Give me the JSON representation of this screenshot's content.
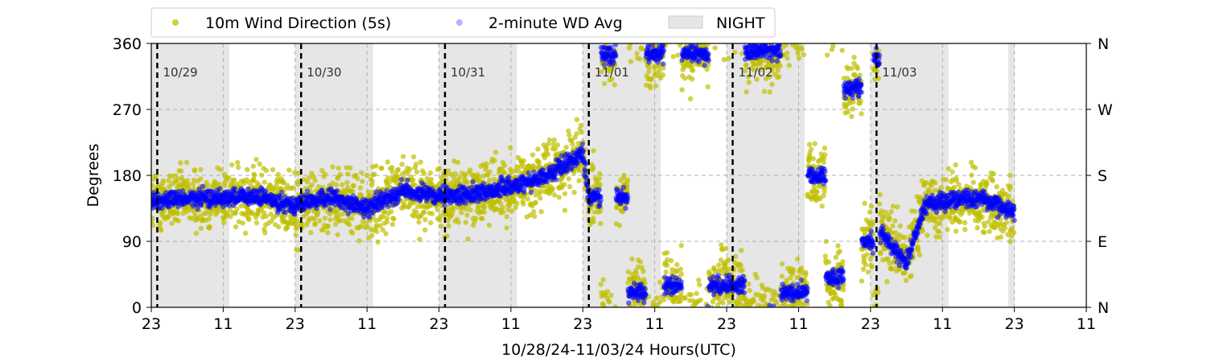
{
  "chart_data": {
    "type": "scatter",
    "xlabel": "10/28/24-11/03/24  Hours(UTC)",
    "ylabel": "Degrees",
    "x_range_hours_since_10_28_23utc": [
      0,
      156
    ],
    "ylim": [
      0,
      360
    ],
    "x_tick_labels": [
      "23",
      "11",
      "23",
      "11",
      "23",
      "11",
      "23",
      "11",
      "23",
      "11",
      "23",
      "11",
      "23",
      "11"
    ],
    "y_tick_labels": [
      "0",
      "90",
      "180",
      "270",
      "360"
    ],
    "y2_tick_labels": [
      "N",
      "E",
      "S",
      "W",
      "N"
    ],
    "gridlines_y": [
      90,
      180,
      270
    ],
    "grid": "dashed",
    "legend": {
      "placement": "top-left, above plot",
      "entries": [
        {
          "label": "10m Wind Direction (5s)",
          "color": "#bfbf00",
          "marker": "dot"
        },
        {
          "label": "2-minute WD Avg",
          "color": "#0000ff",
          "marker": "dot"
        },
        {
          "label": "NIGHT",
          "color": "#e6e6e6",
          "marker": "patch"
        }
      ]
    },
    "day_markers": [
      {
        "label": "10/29",
        "date": "10/29 00:00"
      },
      {
        "label": "10/30",
        "date": "10/30 00:00"
      },
      {
        "label": "10/31",
        "date": "10/31 00:00"
      },
      {
        "label": "11/01",
        "date": "11/01 00:00"
      },
      {
        "label": "11/02",
        "date": "11/02 00:00"
      },
      {
        "label": "11/03",
        "date": "11/03 00:00"
      }
    ],
    "night_periods": [
      [
        "10/28 23:00",
        "10/29 12:00"
      ],
      [
        "10/29 23:00",
        "10/30 12:00"
      ],
      [
        "10/30 23:00",
        "10/31 12:00"
      ],
      [
        "10/31 23:00",
        "11/01 12:00"
      ],
      [
        "11/01 23:00",
        "11/02 12:00"
      ],
      [
        "11/02 23:00",
        "11/03 12:00"
      ],
      [
        "11/03 22:00",
        "11/03 23:00"
      ]
    ],
    "series": [
      {
        "name": "10m Wind Direction (5s)",
        "color": "#bfbf00",
        "description": "5-second samples, spread ±40° around the 2-minute average",
        "spread_deg": 40
      },
      {
        "name": "2-minute WD Avg",
        "color": "#0000ff",
        "points": [
          {
            "date": "10/28 23:00",
            "y": 145
          },
          {
            "date": "10/29 05:00",
            "y": 148
          },
          {
            "date": "10/29 11:00",
            "y": 150
          },
          {
            "date": "10/29 17:00",
            "y": 150
          },
          {
            "date": "10/29 23:00",
            "y": 140
          },
          {
            "date": "10/30 05:00",
            "y": 150
          },
          {
            "date": "10/30 11:00",
            "y": 135
          },
          {
            "date": "10/30 17:00",
            "y": 160
          },
          {
            "date": "10/30 23:00",
            "y": 150
          },
          {
            "date": "10/31 05:00",
            "y": 155
          },
          {
            "date": "10/31 11:00",
            "y": 165
          },
          {
            "date": "10/31 17:00",
            "y": 180
          },
          {
            "date": "10/31 23:00",
            "y": 210
          },
          {
            "date": "11/01 00:00",
            "y": 150
          },
          {
            "date": "11/01 04:00",
            "y": 345
          },
          {
            "date": "11/01 05:00",
            "y": 150
          },
          {
            "date": "11/01 08:00",
            "y": 20
          },
          {
            "date": "11/01 11:00",
            "y": 345
          },
          {
            "date": "11/01 14:00",
            "y": 30
          },
          {
            "date": "11/01 17:00",
            "y": 345
          },
          {
            "date": "11/01 23:00",
            "y": 30
          },
          {
            "date": "11/02 05:00",
            "y": 350
          },
          {
            "date": "11/02 11:00",
            "y": 20
          },
          {
            "date": "11/02 14:00",
            "y": 180
          },
          {
            "date": "11/02 17:00",
            "y": 40
          },
          {
            "date": "11/02 20:00",
            "y": 300
          },
          {
            "date": "11/02 23:00",
            "y": 90
          },
          {
            "date": "11/03 00:00",
            "y": 340
          },
          {
            "date": "11/03 01:00",
            "y": 100
          },
          {
            "date": "11/03 05:00",
            "y": 60
          },
          {
            "date": "11/03 08:00",
            "y": 140
          },
          {
            "date": "11/03 11:00",
            "y": 145
          },
          {
            "date": "11/03 17:00",
            "y": 150
          },
          {
            "date": "11/03 23:00",
            "y": 130
          }
        ]
      }
    ]
  }
}
